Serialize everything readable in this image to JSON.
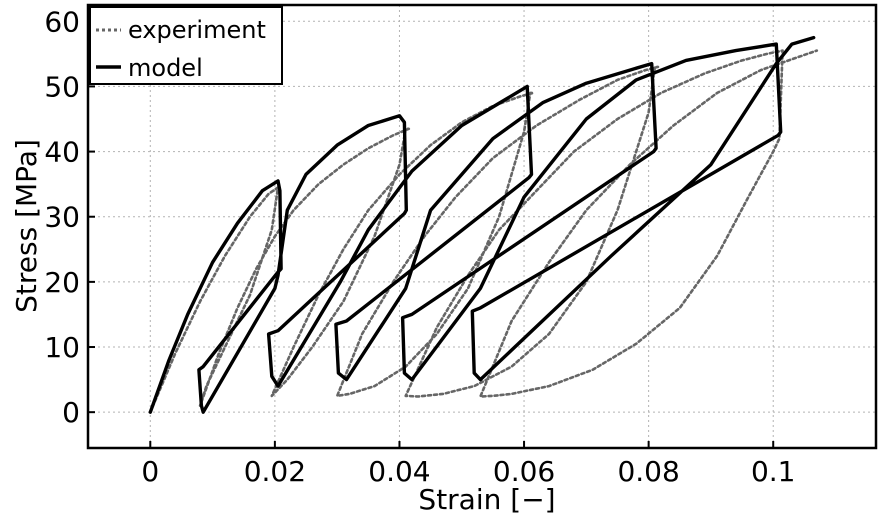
{
  "chart_data": {
    "type": "line",
    "title": "",
    "xlabel": "Strain [−]",
    "ylabel": "Stress [MPa]",
    "xlim": [
      -0.01,
      0.1165
    ],
    "ylim": [
      -5.5,
      62.5
    ],
    "xticks": [
      0,
      0.02,
      0.04,
      0.06,
      0.08,
      0.1
    ],
    "xtick_labels": [
      "0",
      "0.02",
      "0.04",
      "0.06",
      "0.08",
      "0.1"
    ],
    "yticks": [
      0,
      10,
      20,
      30,
      40,
      50,
      60
    ],
    "ytick_labels": [
      "0",
      "10",
      "20",
      "30",
      "40",
      "50",
      "60"
    ],
    "grid": true,
    "legend_position": "top-left",
    "series": [
      {
        "name": "experiment",
        "style": "dotted",
        "color": "#666666",
        "x": [
          0.0,
          0.004,
          0.008,
          0.012,
          0.016,
          0.019,
          0.0205,
          0.0205,
          0.0195,
          0.016,
          0.012,
          0.009,
          0.008,
          0.008,
          0.011,
          0.014,
          0.017,
          0.02,
          0.023,
          0.027,
          0.031,
          0.035,
          0.039,
          0.0415,
          0.041,
          0.04,
          0.036,
          0.031,
          0.026,
          0.022,
          0.0195,
          0.0195,
          0.023,
          0.027,
          0.031,
          0.035,
          0.04,
          0.045,
          0.05,
          0.055,
          0.0595,
          0.0615,
          0.061,
          0.06,
          0.056,
          0.051,
          0.046,
          0.041,
          0.036,
          0.032,
          0.03,
          0.03,
          0.034,
          0.039,
          0.044,
          0.049,
          0.055,
          0.062,
          0.069,
          0.075,
          0.0795,
          0.0815,
          0.081,
          0.08,
          0.075,
          0.07,
          0.064,
          0.058,
          0.052,
          0.047,
          0.043,
          0.041,
          0.041,
          0.046,
          0.051,
          0.056,
          0.062,
          0.068,
          0.075,
          0.082,
          0.089,
          0.095,
          0.099,
          0.1015,
          0.101,
          0.1,
          0.096,
          0.091,
          0.085,
          0.078,
          0.071,
          0.064,
          0.058,
          0.055,
          0.053,
          0.053,
          0.058,
          0.064,
          0.07,
          0.077,
          0.084,
          0.091,
          0.098,
          0.104,
          0.107
        ],
        "y": [
          0.0,
          9.0,
          17.0,
          24.0,
          30.0,
          33.5,
          34.5,
          34.5,
          28.0,
          18.0,
          10.0,
          4.0,
          1.0,
          1.0,
          9.0,
          16.0,
          22.0,
          27.0,
          31.0,
          35.0,
          38.0,
          40.5,
          42.5,
          43.5,
          43.5,
          38.0,
          27.0,
          17.0,
          10.0,
          5.0,
          2.5,
          2.5,
          10.0,
          18.0,
          25.0,
          31.0,
          36.5,
          41.0,
          44.5,
          47.0,
          48.5,
          49.0,
          49.0,
          43.0,
          30.0,
          19.0,
          12.0,
          7.0,
          4.0,
          2.8,
          2.5,
          2.5,
          12.0,
          20.0,
          27.0,
          33.0,
          39.0,
          44.0,
          48.0,
          51.0,
          52.5,
          53.0,
          53.0,
          46.0,
          31.0,
          20.0,
          12.0,
          7.0,
          4.0,
          2.8,
          2.4,
          2.5,
          2.5,
          13.0,
          21.0,
          28.0,
          34.0,
          40.0,
          45.0,
          49.0,
          52.0,
          54.0,
          55.0,
          55.5,
          42.0,
          40.0,
          33.0,
          24.0,
          16.0,
          10.5,
          6.5,
          4.0,
          2.8,
          2.5,
          2.4,
          2.4,
          14.0,
          23.0,
          31.0,
          38.0,
          44.0,
          49.0,
          52.5,
          54.5,
          55.5
        ]
      },
      {
        "name": "model",
        "style": "solid",
        "color": "#000000",
        "x": [
          0.0,
          0.003,
          0.006,
          0.01,
          0.014,
          0.018,
          0.0205,
          0.0208,
          0.021,
          0.0205,
          0.0085,
          0.0078,
          0.0082,
          0.0085,
          0.02,
          0.0205,
          0.022,
          0.025,
          0.03,
          0.035,
          0.04,
          0.0408,
          0.0411,
          0.0408,
          0.0205,
          0.019,
          0.0195,
          0.0205,
          0.0305,
          0.035,
          0.042,
          0.05,
          0.057,
          0.0605,
          0.0612,
          0.0608,
          0.0315,
          0.0298,
          0.0302,
          0.0315,
          0.041,
          0.045,
          0.055,
          0.063,
          0.07,
          0.077,
          0.0805,
          0.0812,
          0.0808,
          0.042,
          0.0405,
          0.0408,
          0.042,
          0.053,
          0.06,
          0.07,
          0.078,
          0.086,
          0.094,
          0.1005,
          0.1012,
          0.1008,
          0.053,
          0.0517,
          0.052,
          0.053,
          0.074,
          0.09,
          0.1005,
          0.103,
          0.1065
        ],
        "y": [
          0.0,
          8.0,
          15.0,
          23.0,
          29.0,
          34.0,
          35.5,
          34.0,
          22.0,
          21.5,
          7.0,
          6.5,
          1.0,
          0.0,
          19.0,
          21.0,
          31.0,
          36.5,
          41.0,
          44.0,
          45.5,
          44.5,
          31.0,
          30.5,
          12.5,
          12.0,
          5.5,
          4.0,
          20.0,
          28.0,
          37.0,
          44.0,
          48.0,
          50.0,
          36.5,
          36.0,
          14.0,
          13.5,
          6.0,
          5.0,
          19.0,
          31.0,
          42.0,
          47.5,
          50.5,
          52.5,
          53.5,
          40.5,
          40.0,
          15.0,
          14.5,
          6.0,
          5.0,
          19.0,
          33.0,
          45.0,
          51.0,
          54.0,
          55.5,
          56.5,
          43.0,
          42.5,
          16.0,
          15.5,
          6.0,
          5.0,
          24.0,
          38.0,
          53.5,
          56.5,
          57.5
        ]
      }
    ]
  }
}
